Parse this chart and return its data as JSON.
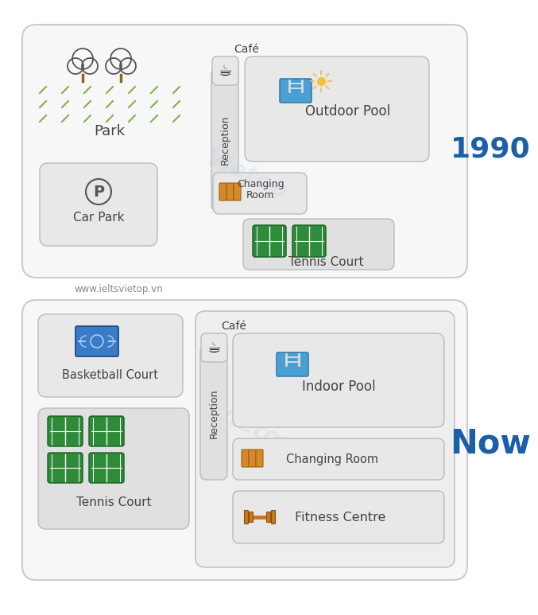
{
  "bg_color": "#ffffff",
  "year1": "1990",
  "year2": "Now",
  "year_color": "#1a5fa8",
  "website": "www.ieltsvietop.vn",
  "map1_park": "Park",
  "map1_carpark": "Car Park",
  "map1_cafe": "Café",
  "map1_reception": "Reception",
  "map1_pool": "Outdoor Pool",
  "map1_changing_l1": "Changing",
  "map1_changing_l2": "Room",
  "map1_tennis": "Tennis Court",
  "map2_basketball": "Basketball Court",
  "map2_tennis": "Tennis Court",
  "map2_cafe": "Café",
  "map2_reception": "Reception",
  "map2_pool": "Indoor Pool",
  "map2_changing": "Changing Room",
  "map2_fitness": "Fitness Centre",
  "tennis_green": "#2e8b3a",
  "tennis_line": "#ffffff",
  "basketball_blue": "#3a7bc8",
  "pool_blue": "#4a9fd4",
  "changing_orange": "#d4892a",
  "fitness_orange": "#c87820",
  "grass_green": "#7ab648",
  "box_face": "#e8e8e8",
  "box_edge": "#bbbbbb",
  "outer_face": "#f7f7f7",
  "outer_edge": "#cccccc",
  "recep_face": "#e0e0e0",
  "sun_color": "#f0c040",
  "label_color": "#444444",
  "water_color": "#aaccee",
  "tree_trunk": "#8B6914",
  "tree_outline": "#555555"
}
